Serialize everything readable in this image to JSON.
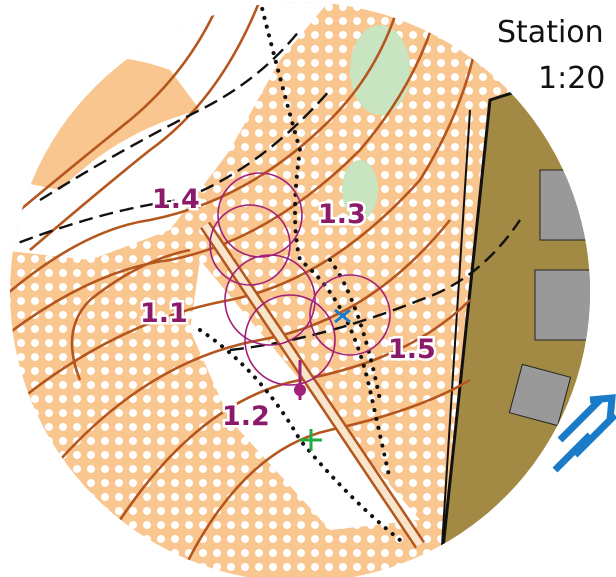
{
  "header": {
    "title": "Station",
    "scale": "1:20"
  },
  "controls": [
    {
      "label": "1.1"
    },
    {
      "label": "1.2"
    },
    {
      "label": "1.3"
    },
    {
      "label": "1.4"
    },
    {
      "label": "1.5"
    }
  ]
}
